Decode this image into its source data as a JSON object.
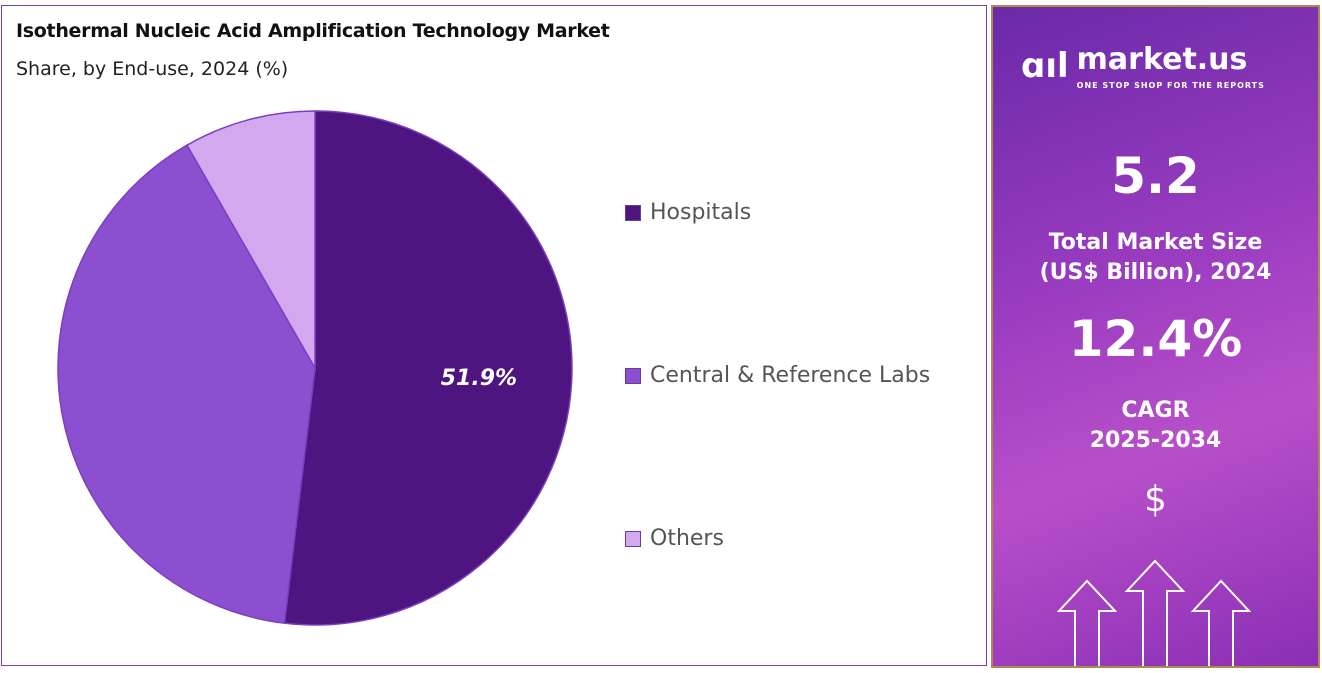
{
  "chart_data": {
    "type": "pie",
    "title": "Isothermal Nucleic Acid Amplification Technology Market",
    "subtitle": "Share, by End-use, 2024 (%)",
    "categories": [
      "Hospitals",
      "Central & Reference Labs",
      "Others"
    ],
    "values": [
      51.9,
      39.8,
      8.3
    ],
    "colors": [
      "#4e1480",
      "#8c4fd0",
      "#d3a8ef"
    ],
    "data_labels": [
      "51.9%",
      "",
      ""
    ],
    "legend_position": "right"
  },
  "sidebar": {
    "logo_text": "market.us",
    "logo_tagline": "ONE STOP SHOP FOR THE REPORTS",
    "market_size": "5.2",
    "market_size_label_1": "Total Market Size",
    "market_size_label_2": "(US$ Billion), 2024",
    "cagr": "12.4%",
    "cagr_label_1": "CAGR",
    "cagr_label_2": "2025-2034",
    "currency_symbol": "$"
  }
}
